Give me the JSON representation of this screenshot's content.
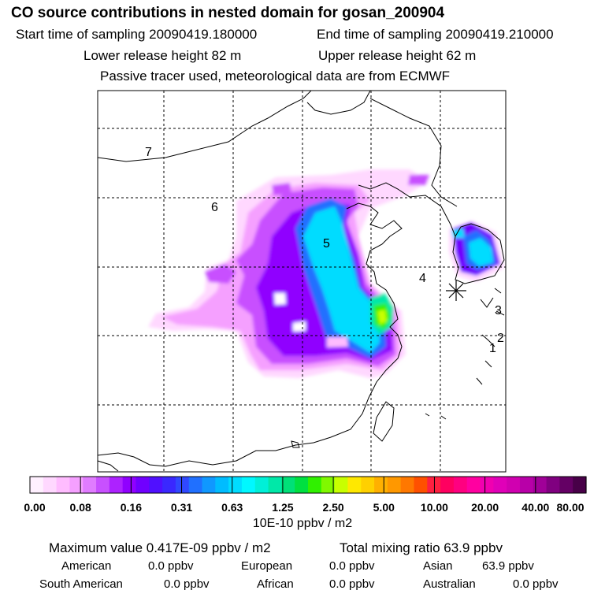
{
  "header": {
    "title": "CO  source contributions in nested domain for gosan_200904",
    "start_time": "Start time of sampling 20090419.180000",
    "end_time": "End time of sampling 20090419.210000",
    "lower_height": "Lower release height   82 m",
    "upper_height": "Upper release height   62 m",
    "note": "Passive tracer used, meteorological data are from ECMWF"
  },
  "map": {
    "region_labels": [
      "7",
      "6",
      "5",
      "4",
      "3",
      "2",
      "1"
    ],
    "receptor_marker": "asterisk-icon"
  },
  "colorbar": {
    "labels": [
      "0.00",
      "0.08",
      "0.16",
      "0.31",
      "0.63",
      "1.25",
      "2.50",
      "5.00",
      "10.00",
      "20.00",
      "40.00",
      "80.00"
    ],
    "unit": "10E-10 ppbv / m2",
    "colors": [
      "#fff0ff",
      "#ffd8ff",
      "#ffbcff",
      "#f5a0ff",
      "#e07cff",
      "#c850ff",
      "#ad22ff",
      "#9000ff",
      "#7000ff",
      "#5010ff",
      "#3a28ff",
      "#3048ff",
      "#2070ff",
      "#1098ff",
      "#00bcff",
      "#00dcff",
      "#00f8ff",
      "#00f0d8",
      "#00e8a8",
      "#00e078",
      "#00e040",
      "#30f000",
      "#80f800",
      "#c8ff00",
      "#ffe800",
      "#ffd000",
      "#ffb000",
      "#ff9800",
      "#ff7800",
      "#ff5000",
      "#ff2040",
      "#ff0060",
      "#ff0080",
      "#ff00a0",
      "#f000b0",
      "#e000b8",
      "#d000b0",
      "#b800a8",
      "#a00098",
      "#800080",
      "#640064",
      "#480048"
    ]
  },
  "stats": {
    "max_value": "Maximum value  0.417E-09 ppbv / m2",
    "total": "Total mixing ratio      63.9 ppbv",
    "contributions": [
      {
        "name": "American",
        "value": "0.0 ppbv"
      },
      {
        "name": "European",
        "value": "0.0 ppbv"
      },
      {
        "name": "Asian",
        "value": "63.9 ppbv"
      },
      {
        "name": "South American",
        "value": "0.0 ppbv"
      },
      {
        "name": "African",
        "value": "0.0 ppbv"
      },
      {
        "name": "Australian",
        "value": "0.0 ppbv"
      }
    ]
  }
}
